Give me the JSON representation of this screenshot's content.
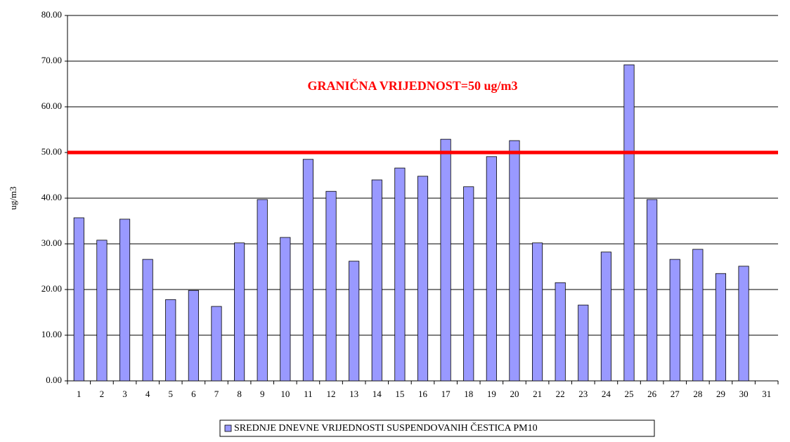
{
  "chart_data": {
    "type": "bar",
    "ylabel": "ug/m3",
    "categories": [
      "1",
      "2",
      "3",
      "4",
      "5",
      "6",
      "7",
      "8",
      "9",
      "10",
      "11",
      "12",
      "13",
      "14",
      "15",
      "16",
      "17",
      "18",
      "19",
      "20",
      "21",
      "22",
      "23",
      "24",
      "25",
      "26",
      "27",
      "28",
      "29",
      "30",
      "31"
    ],
    "series": [
      {
        "name": "SREDNJE DNEVNE VRIJEDNOSTI SUSPENDOVANIH ČESTICA PM10",
        "color": "#9999ff",
        "values": [
          35.7,
          30.8,
          35.4,
          26.6,
          17.8,
          19.8,
          16.3,
          30.2,
          39.7,
          31.4,
          48.5,
          41.5,
          26.2,
          44.0,
          46.6,
          44.8,
          52.9,
          42.5,
          49.1,
          52.6,
          30.2,
          21.5,
          16.6,
          28.2,
          69.2,
          39.7,
          26.6,
          28.8,
          23.5,
          25.1,
          null
        ]
      }
    ],
    "threshold": {
      "value": 50,
      "label": "GRANIČNA VRIJEDNOST=50 ug/m3",
      "color": "#ff0000"
    },
    "ylim": [
      0,
      80
    ],
    "yticks": [
      {
        "value": 0,
        "label": "0.00"
      },
      {
        "value": 10,
        "label": "10.00"
      },
      {
        "value": 20,
        "label": "20.00"
      },
      {
        "value": 30,
        "label": "30.00"
      },
      {
        "value": 40,
        "label": "40.00"
      },
      {
        "value": 50,
        "label": "50.00"
      },
      {
        "value": 60,
        "label": "60.00"
      },
      {
        "value": 70,
        "label": "70.00"
      },
      {
        "value": 80,
        "label": "80.00"
      }
    ],
    "grid": true
  }
}
